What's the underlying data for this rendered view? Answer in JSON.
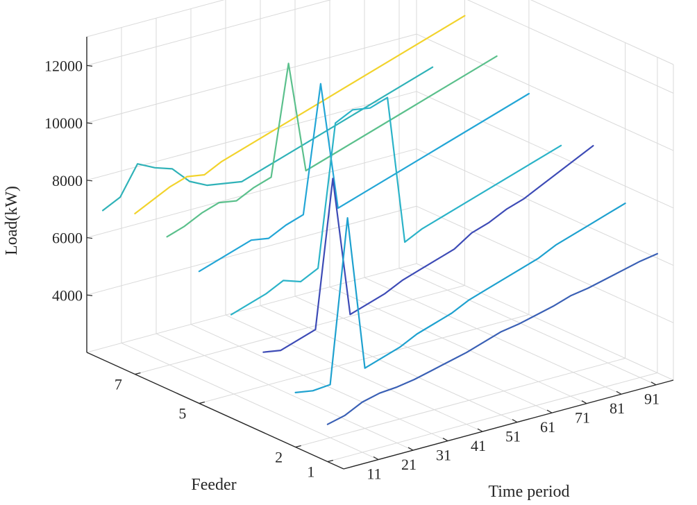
{
  "chart_data": {
    "type": "line",
    "subtype": "3d-line",
    "title": "",
    "xlabel": "Time period",
    "ylabel": "Feeder",
    "zlabel": "Load(kW)",
    "xlim": [
      1,
      96
    ],
    "ylim": [
      0.5,
      8.5
    ],
    "zlim": [
      2000,
      13000
    ],
    "x_ticks": [
      "11",
      "21",
      "31",
      "41",
      "51",
      "61",
      "71",
      "81",
      "91"
    ],
    "y_ticks": [
      "1",
      "2",
      "5",
      "7"
    ],
    "z_ticks": [
      "4000",
      "6000",
      "8000",
      "10000",
      "12000"
    ],
    "colors": {
      "feeder_1": "#3a60b5",
      "feeder_2": "#1ea1cf",
      "feeder_3": "#3d4bb6",
      "feeder_4": "#2bb3c8",
      "feeder_5": "#23a6d6",
      "feeder_6": "#5bc08c",
      "feeder_7": "#f2d32c",
      "feeder_8": "#2fb2b8"
    },
    "series": [
      {
        "name": "Feeder 1",
        "feeder": 1,
        "x": [
          1,
          6,
          11,
          16,
          21,
          26,
          31,
          36,
          41,
          46,
          51,
          56,
          61,
          66,
          71,
          76,
          81,
          86,
          91,
          96
        ],
        "values": [
          3300,
          3450,
          3750,
          3900,
          3950,
          4050,
          4200,
          4350,
          4500,
          4700,
          4900,
          5000,
          5150,
          5300,
          5500,
          5600,
          5750,
          5900,
          6050,
          6150
        ]
      },
      {
        "name": "Feeder 2",
        "feeder": 2,
        "x": [
          1,
          6,
          11,
          16,
          21,
          26,
          31,
          36,
          41,
          46,
          51,
          56,
          61,
          66,
          71,
          76,
          81,
          86,
          91,
          96
        ],
        "values": [
          3900,
          3800,
          3850,
          9500,
          4100,
          4300,
          4500,
          4800,
          5000,
          5200,
          5500,
          5700,
          5900,
          6100,
          6300,
          6600,
          6800,
          7000,
          7200,
          7400
        ]
      },
      {
        "name": "Feeder 3",
        "feeder": 3,
        "x": [
          1,
          6,
          11,
          16,
          21,
          26,
          31,
          36,
          41,
          46,
          51,
          56,
          61,
          66,
          71,
          76,
          81,
          86,
          91,
          96
        ],
        "values": [
          4800,
          4700,
          4900,
          5100,
          10200,
          5300,
          5500,
          5700,
          6000,
          6200,
          6400,
          6600,
          7000,
          7200,
          7500,
          7700,
          8000,
          8300,
          8600,
          8900
        ]
      },
      {
        "name": "Feeder 4",
        "feeder": 4,
        "x": [
          1,
          6,
          11,
          16,
          21,
          26,
          31,
          36,
          41,
          46,
          51,
          56,
          61,
          66,
          71,
          76,
          81,
          86,
          91,
          96
        ],
        "values": [
          5600,
          5800,
          6000,
          6300,
          6100,
          6400,
          11300,
          11600,
          11500,
          11700,
          6500,
          6800,
          7000,
          7200,
          7400,
          7600,
          7800,
          8000,
          8200,
          8400
        ]
      },
      {
        "name": "Feeder 5",
        "feeder": 5,
        "x": [
          1,
          6,
          11,
          16,
          21,
          26,
          31,
          36,
          41,
          46,
          51,
          56,
          61,
          66,
          71,
          76,
          81,
          86,
          91,
          96
        ],
        "values": [
          6600,
          6800,
          7000,
          7200,
          7100,
          7400,
          7600,
          12000,
          7500,
          7700,
          7900,
          8100,
          8300,
          8500,
          8700,
          8900,
          9100,
          9300,
          9500,
          9700
        ]
      },
      {
        "name": "Feeder 6",
        "feeder": 6,
        "x": [
          1,
          6,
          11,
          16,
          21,
          26,
          31,
          36,
          41,
          46,
          51,
          56,
          61,
          66,
          71,
          76,
          81,
          86,
          91,
          96
        ],
        "values": [
          7300,
          7500,
          7800,
          8000,
          7900,
          8200,
          8400,
          12200,
          8300,
          8500,
          8700,
          8900,
          9100,
          9300,
          9500,
          9700,
          9900,
          10100,
          10300,
          10500
        ]
      },
      {
        "name": "Feeder 7",
        "feeder": 7,
        "x": [
          1,
          6,
          11,
          16,
          21,
          26,
          31,
          36,
          41,
          46,
          51,
          56,
          61,
          66,
          71,
          76,
          81,
          86,
          91,
          96
        ],
        "values": [
          7600,
          7900,
          8200,
          8400,
          8300,
          8600,
          8800,
          9000,
          9200,
          9400,
          9600,
          9800,
          10000,
          10200,
          10400,
          10600,
          10800,
          11000,
          11200,
          11400
        ]
      },
      {
        "name": "Feeder 8",
        "feeder": 8,
        "x": [
          1,
          6,
          11,
          16,
          21,
          26,
          31,
          36,
          41,
          46,
          51,
          56,
          61,
          66,
          71,
          76,
          81,
          86,
          91,
          96
        ],
        "values": [
          7200,
          7500,
          8500,
          8200,
          8000,
          7400,
          7100,
          7000,
          6900,
          7100,
          7300,
          7500,
          7700,
          7900,
          8100,
          8300,
          8500,
          8700,
          8900,
          9100
        ]
      }
    ]
  }
}
